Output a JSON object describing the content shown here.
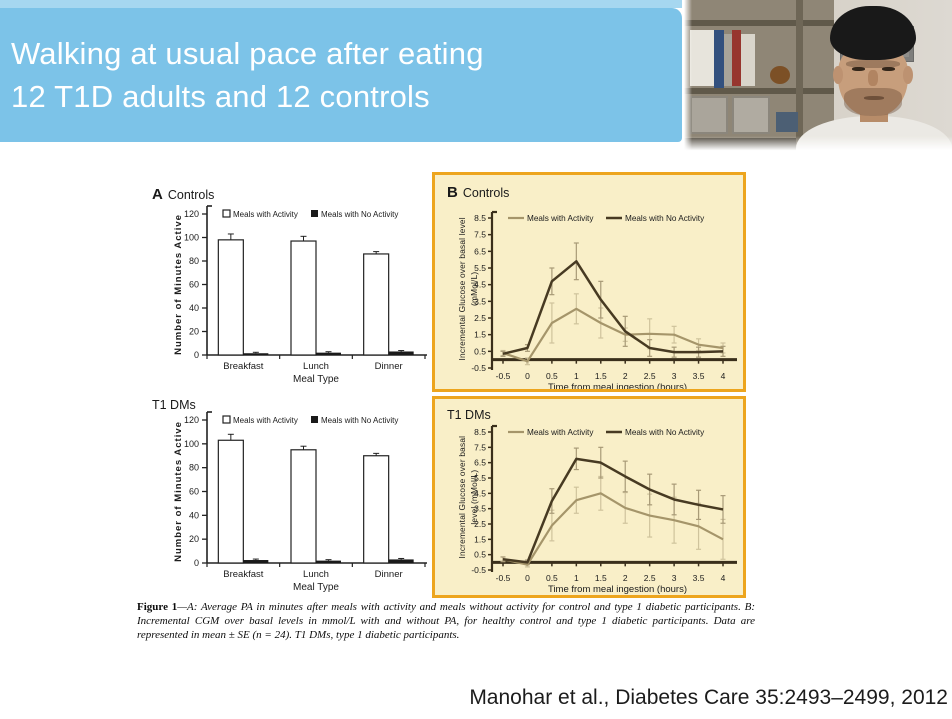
{
  "header": {
    "title_line1": "Walking at usual pace after eating",
    "title_line2": "12 T1D adults and 12 controls",
    "banner_color": "#7cc3e8",
    "banner_strip_color": "#a6d7f0"
  },
  "figure": {
    "caption_label": "Figure 1",
    "caption_text": "—A: Average PA in minutes after meals with activity and meals without activity for control and type 1 diabetic participants. B: Incremental CGM over basal levels in mmol/L with and without PA, for healthy control and type 1 diabetic participants. Data are represented in mean ± SE (n = 24). T1 DMs, type 1 diabetic participants."
  },
  "citation": "Manohar et al., Diabetes Care 35:2493–2499, 2012",
  "chart_data": [
    {
      "type": "bar",
      "panel_letter": "A",
      "title": "Controls",
      "categories": [
        "Breakfast",
        "Lunch",
        "Dinner"
      ],
      "series": [
        {
          "name": "Meals with Activity",
          "values": [
            98,
            97,
            86
          ],
          "errors": [
            5,
            4,
            2
          ],
          "fill": "#ffffff"
        },
        {
          "name": "Meals with No Activity",
          "values": [
            1.5,
            2,
            3
          ],
          "errors": [
            0.8,
            0.8,
            0.8
          ],
          "fill": "#1a1a1a"
        }
      ],
      "xlabel": "Meal Type",
      "ylabel": "Number of Minutes Active",
      "ylim": [
        0,
        120
      ],
      "yticks": [
        0,
        20,
        40,
        60,
        80,
        100,
        120
      ],
      "legend_position": "top",
      "grid": false
    },
    {
      "type": "bar",
      "panel_letter": "",
      "title": "T1 DMs",
      "categories": [
        "Breakfast",
        "Lunch",
        "Dinner"
      ],
      "series": [
        {
          "name": "Meals with Activity",
          "values": [
            103,
            95,
            90
          ],
          "errors": [
            5,
            3,
            2
          ],
          "fill": "#ffffff"
        },
        {
          "name": "Meals with No Activity",
          "values": [
            2.5,
            2,
            3
          ],
          "errors": [
            0.8,
            0.8,
            0.8
          ],
          "fill": "#1a1a1a"
        }
      ],
      "xlabel": "Meal Type",
      "ylabel": "Number of Minutes Active",
      "ylim": [
        0,
        120
      ],
      "yticks": [
        0,
        20,
        40,
        60,
        80,
        100,
        120
      ],
      "legend_position": "top",
      "grid": false
    },
    {
      "type": "line",
      "panel_letter": "B",
      "title": "Controls",
      "panel_bg": "#f9efc8",
      "panel_border": "#eda51e",
      "x": [
        -0.5,
        0,
        0.5,
        1,
        1.5,
        2,
        2.5,
        3,
        3.5,
        4
      ],
      "series": [
        {
          "name": "Meals with Activity",
          "color": "#a5956a",
          "error_color": "#cfc39c",
          "values": [
            0.4,
            -0.1,
            2.2,
            3.05,
            2.2,
            1.5,
            1.55,
            1.5,
            0.9,
            0.7
          ],
          "errors": [
            0.15,
            0.2,
            1.2,
            0.9,
            0.9,
            0.4,
            0.9,
            0.5,
            0.35,
            0.3
          ]
        },
        {
          "name": "Meals with No Activity",
          "color": "#473a22",
          "error_color": "#a89a77",
          "values": [
            0.35,
            0.7,
            4.7,
            5.9,
            3.6,
            1.7,
            0.7,
            0.45,
            0.45,
            0.5
          ],
          "errors": [
            0.15,
            0.2,
            0.8,
            1.1,
            1.1,
            0.9,
            0.5,
            0.3,
            0.3,
            0.3
          ]
        }
      ],
      "xlabel": "Time from meal ingestion (hours)",
      "ylabel_lines": [
        "Incremental Glucose over basal level",
        "(mMol/L)"
      ],
      "ylim": [
        -0.5,
        8.5
      ],
      "yticks": [
        8.5,
        7.5,
        6.5,
        5.5,
        4.5,
        3.5,
        2.5,
        1.5,
        0.5,
        -0.5
      ],
      "legend_position": "top",
      "grid": false
    },
    {
      "type": "line",
      "panel_letter": "",
      "title": "T1 DMs",
      "panel_bg": "#f9efc8",
      "panel_border": "#eda51e",
      "x": [
        -0.5,
        0,
        0.5,
        1,
        1.5,
        2,
        2.5,
        3,
        3.5,
        4
      ],
      "series": [
        {
          "name": "Meals with Activity",
          "color": "#a5956a",
          "error_color": "#cfc39c",
          "values": [
            0.2,
            -0.15,
            2.4,
            4.05,
            4.5,
            3.55,
            3.05,
            2.75,
            2.35,
            1.5
          ],
          "errors": [
            0.15,
            0.15,
            1.0,
            0.85,
            1.1,
            1.0,
            1.4,
            1.5,
            1.5,
            1.3
          ]
        },
        {
          "name": "Meals with No Activity",
          "color": "#473a22",
          "error_color": "#a89a77",
          "values": [
            0.2,
            0.0,
            4.0,
            6.75,
            6.5,
            5.6,
            4.75,
            4.1,
            3.75,
            3.45
          ],
          "errors": [
            0.15,
            0.15,
            0.8,
            0.7,
            1.0,
            1.0,
            1.0,
            1.0,
            0.95,
            0.9
          ]
        }
      ],
      "xlabel": "Time from meal ingestion (hours)",
      "ylabel_lines": [
        "Incremental Glucose over basal",
        "level (mMol/L)"
      ],
      "ylim": [
        -0.5,
        8.5
      ],
      "yticks": [
        8.5,
        7.5,
        6.5,
        5.5,
        4.5,
        3.5,
        2.5,
        1.5,
        0.5,
        -0.5
      ],
      "legend_position": "top",
      "grid": false
    }
  ]
}
